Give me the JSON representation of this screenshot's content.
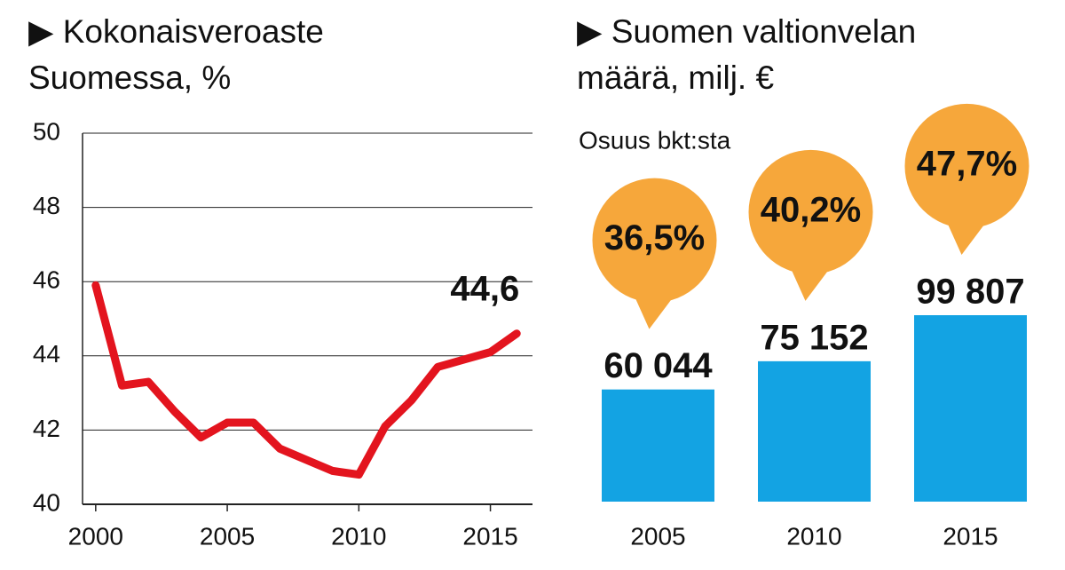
{
  "chart_data": [
    {
      "type": "line",
      "title": "▶ Kokonaisveroaste Suomessa, %",
      "x": [
        2000,
        2001,
        2002,
        2003,
        2004,
        2005,
        2006,
        2007,
        2008,
        2009,
        2010,
        2011,
        2012,
        2013,
        2014,
        2015,
        2016
      ],
      "values": [
        45.9,
        43.2,
        43.3,
        42.5,
        41.8,
        42.2,
        42.2,
        41.5,
        41.2,
        40.9,
        40.8,
        42.1,
        42.8,
        43.7,
        43.9,
        44.1,
        44.6
      ],
      "value_labels": [
        null,
        null,
        null,
        null,
        null,
        null,
        null,
        null,
        null,
        null,
        null,
        null,
        null,
        null,
        null,
        null,
        "44,6"
      ],
      "color": "#e3141e",
      "xlim": [
        1999.5,
        2016.6
      ],
      "xticks": [
        2000,
        2005,
        2010,
        2015
      ],
      "ylim": [
        40,
        50
      ],
      "yticks": [
        40,
        42,
        44,
        46,
        48,
        50
      ],
      "grid": true
    },
    {
      "type": "bar",
      "title": "▶ Suomen valtionvelan määrä, milj. €",
      "categories": [
        "2005",
        "2010",
        "2015"
      ],
      "values": [
        60044,
        75152,
        99807
      ],
      "value_labels": [
        "60 044",
        "75 152",
        "99 807"
      ],
      "color": "#13a3e3",
      "shares": {
        "name": "Osuus bkt:sta",
        "values": [
          36.5,
          40.2,
          47.7
        ],
        "value_labels": [
          "36,5%",
          "40,2%",
          "47,7%"
        ],
        "color": "#f6a73b"
      }
    }
  ]
}
